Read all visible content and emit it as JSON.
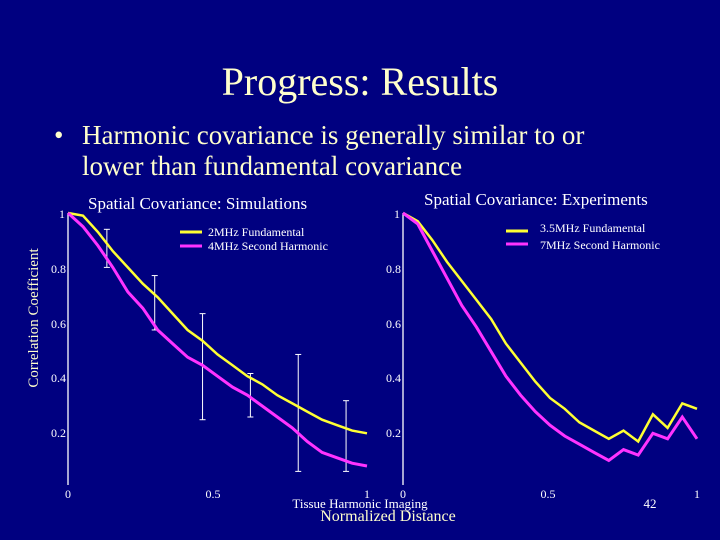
{
  "slide": {
    "title": "Progress: Results",
    "bullet_marker": "•",
    "bullet_line1": "Harmonic covariance is generally similar to  or",
    "bullet_line2": "lower than fundamental covariance",
    "page_number": "42"
  },
  "colors": {
    "background": "#000080",
    "text": "#ffffcc",
    "fundamental": "#ffff33",
    "harmonic": "#ff33ff",
    "axis": "#ffffff"
  },
  "chart_data": [
    {
      "type": "line",
      "title": "Spatial Covariance: Simulations",
      "ylabel": "Correlation Coefficient",
      "xlabel": "",
      "x_ticks": [
        "0",
        "0.5",
        "1"
      ],
      "y_ticks": [
        "1",
        "0.8",
        "0.6",
        "0.4",
        "0.2"
      ],
      "xlim": [
        0,
        1
      ],
      "ylim": [
        0,
        1
      ],
      "grid": false,
      "legend_position": "top-right",
      "series": [
        {
          "name": "2MHz Fundamental",
          "color": "#ffff33",
          "x": [
            0.0,
            0.05,
            0.1,
            0.15,
            0.2,
            0.25,
            0.3,
            0.35,
            0.4,
            0.45,
            0.5,
            0.55,
            0.6,
            0.65,
            0.7,
            0.75,
            0.8,
            0.85,
            0.9,
            0.95,
            1.0
          ],
          "y": [
            1.0,
            0.99,
            0.93,
            0.86,
            0.8,
            0.74,
            0.69,
            0.63,
            0.57,
            0.53,
            0.48,
            0.44,
            0.4,
            0.37,
            0.33,
            0.3,
            0.27,
            0.24,
            0.22,
            0.2,
            0.19
          ]
        },
        {
          "name": "4MHz Second Harmonic",
          "color": "#ff33ff",
          "x": [
            0.0,
            0.05,
            0.1,
            0.15,
            0.2,
            0.25,
            0.3,
            0.35,
            0.4,
            0.45,
            0.5,
            0.55,
            0.6,
            0.65,
            0.7,
            0.75,
            0.8,
            0.85,
            0.9,
            0.95,
            1.0
          ],
          "y": [
            1.0,
            0.95,
            0.88,
            0.8,
            0.71,
            0.65,
            0.57,
            0.52,
            0.47,
            0.44,
            0.4,
            0.36,
            0.33,
            0.29,
            0.25,
            0.21,
            0.16,
            0.12,
            0.1,
            0.08,
            0.07
          ]
        }
      ],
      "error_bars": {
        "x": [
          0.13,
          0.29,
          0.45,
          0.61,
          0.77,
          0.93
        ],
        "low": [
          0.8,
          0.57,
          0.24,
          0.25,
          0.05,
          0.05
        ],
        "high": [
          0.94,
          0.77,
          0.63,
          0.41,
          0.48,
          0.31
        ]
      }
    },
    {
      "type": "line",
      "title": "Spatial Covariance: Experiments",
      "ylabel": "",
      "xlabel": "Normalized Distance",
      "x_ticks": [
        "0",
        "0.5",
        "1"
      ],
      "y_ticks": [
        "1",
        "0.8",
        "0.6",
        "0.4",
        "0.2"
      ],
      "xlim": [
        0,
        1
      ],
      "ylim": [
        0,
        1
      ],
      "grid": false,
      "legend_position": "top-right",
      "annotation": "Tissue Harmonic Imaging",
      "series": [
        {
          "name": "3.5MHz Fundamental",
          "color": "#ffff33",
          "x": [
            0.0,
            0.05,
            0.1,
            0.15,
            0.2,
            0.25,
            0.3,
            0.35,
            0.4,
            0.45,
            0.5,
            0.55,
            0.6,
            0.65,
            0.7,
            0.75,
            0.8,
            0.85,
            0.9,
            0.95,
            1.0
          ],
          "y": [
            1.0,
            0.97,
            0.9,
            0.82,
            0.75,
            0.68,
            0.61,
            0.52,
            0.45,
            0.38,
            0.32,
            0.28,
            0.23,
            0.2,
            0.17,
            0.2,
            0.16,
            0.26,
            0.21,
            0.3,
            0.28
          ]
        },
        {
          "name": "7MHz Second Harmonic",
          "color": "#ff33ff",
          "x": [
            0.0,
            0.05,
            0.1,
            0.15,
            0.2,
            0.25,
            0.3,
            0.35,
            0.4,
            0.45,
            0.5,
            0.55,
            0.6,
            0.65,
            0.7,
            0.75,
            0.8,
            0.85,
            0.9,
            0.95,
            1.0
          ],
          "y": [
            1.0,
            0.96,
            0.86,
            0.76,
            0.66,
            0.58,
            0.49,
            0.4,
            0.33,
            0.27,
            0.22,
            0.18,
            0.15,
            0.12,
            0.09,
            0.13,
            0.11,
            0.19,
            0.17,
            0.25,
            0.17
          ]
        }
      ]
    }
  ]
}
